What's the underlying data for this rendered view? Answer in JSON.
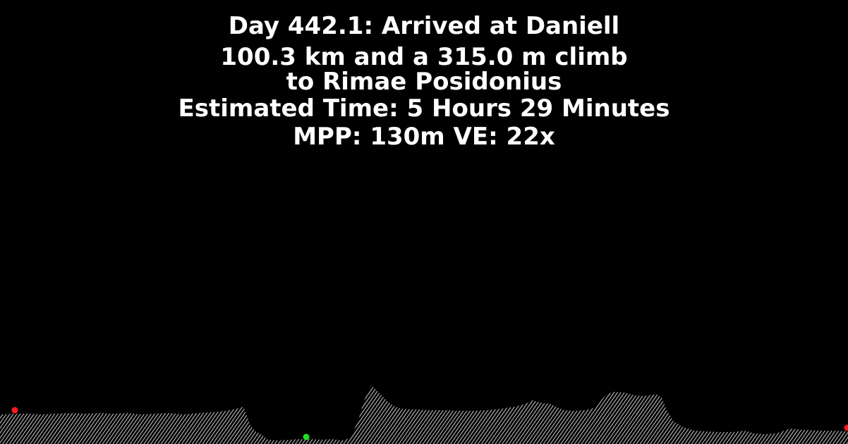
{
  "title": {
    "line1": "Day 442.1: Arrived at Daniell",
    "line2": "100.3 km and a 315.0 m climb",
    "line3": "to Rimae Posidonius",
    "line4": "Estimated Time: 5 Hours 29 Minutes",
    "line5": "MPP: 130m VE: 22x"
  },
  "colors": {
    "background": "#000000",
    "text": "#ffffff",
    "terrain_hatch": "#ffffff",
    "marker_endpoint": "#ff1a1a",
    "marker_current": "#22dd22"
  },
  "markers": [
    {
      "name": "start-marker",
      "color": "#ff1a1a"
    },
    {
      "name": "current-position-marker",
      "color": "#22dd22"
    },
    {
      "name": "end-marker",
      "color": "#ff1a1a"
    }
  ]
}
